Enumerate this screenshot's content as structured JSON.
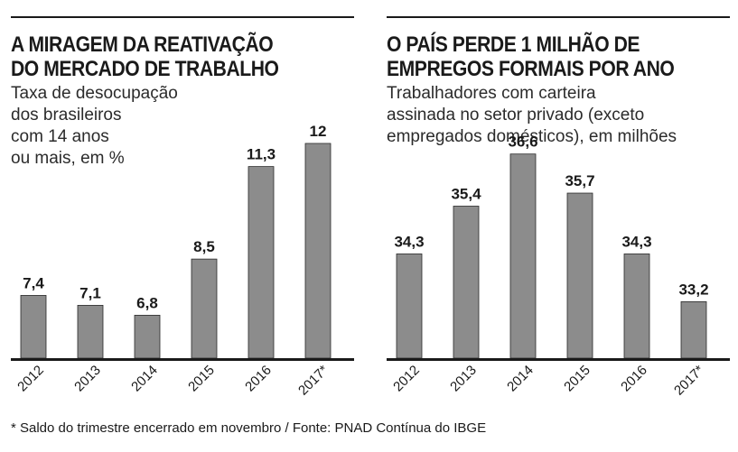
{
  "footnote": "* Saldo do trimestre encerrado em novembro / Fonte: PNAD Contínua do IBGE",
  "chart_data": [
    {
      "type": "bar",
      "title_lines": [
        "A MIRAGEM DA REATIVAÇÃO",
        "DO MERCADO DE TRABALHO"
      ],
      "subtitle_lines": [
        "Taxa de desocupação",
        "dos brasileiros",
        "com 14 anos",
        "ou mais, em %"
      ],
      "categories": [
        "2012",
        "2013",
        "2014",
        "2015",
        "2016",
        "2017*"
      ],
      "values": [
        7.4,
        7.1,
        6.8,
        8.5,
        11.3,
        12
      ],
      "value_labels": [
        "7,4",
        "7,1",
        "6,8",
        "8,5",
        "11,3",
        "12"
      ],
      "ylim": [
        5.5,
        12.6
      ],
      "grid": false,
      "bar_color": "#8c8c8c"
    },
    {
      "type": "bar",
      "title_lines": [
        "O PAÍS PERDE 1 MILHÃO DE",
        "EMPREGOS FORMAIS POR ANO"
      ],
      "subtitle_lines": [
        "Trabalhadores com carteira",
        "assinada no setor privado (exceto",
        "empregados domésticos), em milhões"
      ],
      "categories": [
        "2012",
        "2013",
        "2014",
        "2015",
        "2016",
        "2017*"
      ],
      "values": [
        34.3,
        35.4,
        36.6,
        35.7,
        34.3,
        33.2
      ],
      "value_labels": [
        "34,3",
        "35,4",
        "36,6",
        "35,7",
        "34,3",
        "33,2"
      ],
      "ylim": [
        31.9,
        37.3
      ],
      "grid": false,
      "bar_color": "#8c8c8c"
    }
  ]
}
